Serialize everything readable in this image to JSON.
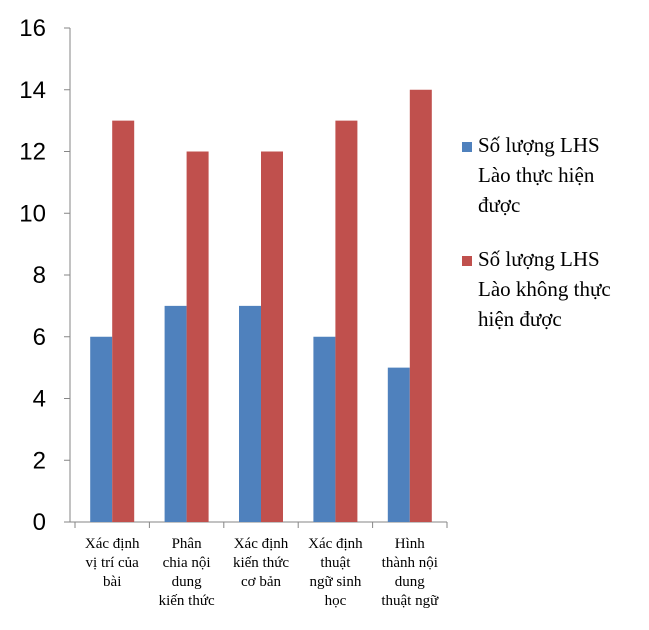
{
  "chart_data": {
    "type": "bar",
    "categories": [
      [
        "Xác định",
        "vị trí của",
        "bài"
      ],
      [
        "Phân",
        "chia nội",
        "dung",
        "kiến thức"
      ],
      [
        "Xác định",
        "kiến thức",
        "cơ bản"
      ],
      [
        "Xác định",
        "thuật",
        "ngữ sinh",
        "học"
      ],
      [
        "Hình",
        "thành nội",
        "dung",
        "thuật ngữ"
      ]
    ],
    "series": [
      {
        "name": "Số lượng LHS Lào  thực hiện được",
        "name_lines": [
          "Số lượng LHS",
          "Lào  thực hiện",
          "được"
        ],
        "color": "#4F81BD",
        "values": [
          6,
          7,
          7,
          6,
          5
        ]
      },
      {
        "name": "Số lượng LHS Lào không thực hiện được",
        "name_lines": [
          "Số lượng LHS",
          "Lào không thực",
          "hiện được"
        ],
        "color": "#C0504D",
        "values": [
          13,
          12,
          12,
          13,
          14
        ]
      }
    ],
    "ylim": [
      0,
      16
    ],
    "yticks": [
      0,
      2,
      4,
      6,
      8,
      10,
      12,
      14,
      16
    ],
    "grid": false,
    "legend": "right"
  }
}
